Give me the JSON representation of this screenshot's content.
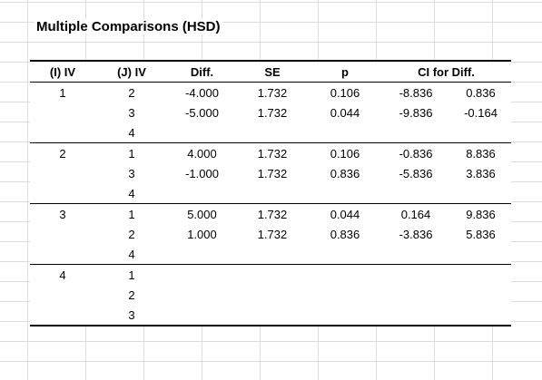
{
  "title": "Multiple Comparisons (HSD)",
  "headers": {
    "i_iv": "(I) IV",
    "j_iv": "(J) IV",
    "diff": "Diff.",
    "se": "SE",
    "p": "p",
    "ci": "CI for Diff."
  },
  "groups": [
    {
      "i": "1",
      "rows": [
        {
          "j": "2",
          "diff": "-4.000",
          "se": "1.732",
          "p": "0.106",
          "lo": "-8.836",
          "hi": "0.836"
        },
        {
          "j": "3",
          "diff": "-5.000",
          "se": "1.732",
          "p": "0.044",
          "lo": "-9.836",
          "hi": "-0.164"
        },
        {
          "j": "4",
          "diff": "",
          "se": "",
          "p": "",
          "lo": "",
          "hi": ""
        }
      ]
    },
    {
      "i": "2",
      "rows": [
        {
          "j": "1",
          "diff": "4.000",
          "se": "1.732",
          "p": "0.106",
          "lo": "-0.836",
          "hi": "8.836"
        },
        {
          "j": "3",
          "diff": "-1.000",
          "se": "1.732",
          "p": "0.836",
          "lo": "-5.836",
          "hi": "3.836"
        },
        {
          "j": "4",
          "diff": "",
          "se": "",
          "p": "",
          "lo": "",
          "hi": ""
        }
      ]
    },
    {
      "i": "3",
      "rows": [
        {
          "j": "1",
          "diff": "5.000",
          "se": "1.732",
          "p": "0.044",
          "lo": "0.164",
          "hi": "9.836"
        },
        {
          "j": "2",
          "diff": "1.000",
          "se": "1.732",
          "p": "0.836",
          "lo": "-3.836",
          "hi": "5.836"
        },
        {
          "j": "4",
          "diff": "",
          "se": "",
          "p": "",
          "lo": "",
          "hi": ""
        }
      ]
    },
    {
      "i": "4",
      "rows": [
        {
          "j": "1",
          "diff": "",
          "se": "",
          "p": "",
          "lo": "",
          "hi": ""
        },
        {
          "j": "2",
          "diff": "",
          "se": "",
          "p": "",
          "lo": "",
          "hi": ""
        },
        {
          "j": "3",
          "diff": "",
          "se": "",
          "p": "",
          "lo": "",
          "hi": ""
        }
      ]
    }
  ]
}
